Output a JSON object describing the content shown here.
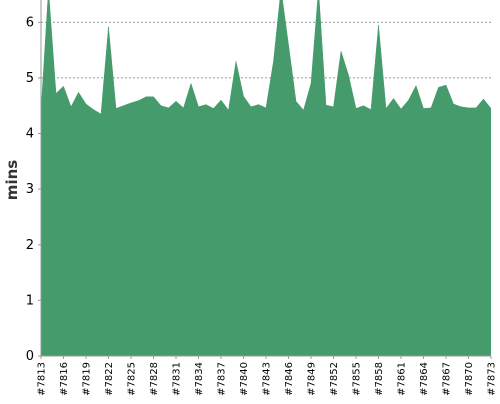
{
  "chart_data": {
    "type": "area",
    "title": "",
    "xlabel": "",
    "ylabel": "mins",
    "ylim": [
      0,
      6.4
    ],
    "yticks": [
      0,
      1,
      2,
      3,
      4,
      5,
      6
    ],
    "grid": true,
    "legend": "none",
    "colors": {
      "fill": "#459b6c",
      "grid": "#7a7a7a",
      "axis": "#9a9a9a",
      "text": "#000000"
    },
    "xticklabels": [
      "#7813",
      "#7816",
      "#7819",
      "#7822",
      "#7825",
      "#7828",
      "#7831",
      "#7834",
      "#7837",
      "#7840",
      "#7843",
      "#7846",
      "#7849",
      "#7852",
      "#7855",
      "#7858",
      "#7861",
      "#7864",
      "#7867",
      "#7870",
      "#7873"
    ],
    "x": [
      7813,
      7814,
      7815,
      7816,
      7817,
      7818,
      7819,
      7820,
      7821,
      7822,
      7823,
      7824,
      7825,
      7826,
      7827,
      7828,
      7829,
      7830,
      7831,
      7832,
      7833,
      7834,
      7835,
      7836,
      7837,
      7838,
      7839,
      7840,
      7841,
      7842,
      7843,
      7844,
      7845,
      7846,
      7847,
      7848,
      7849,
      7850,
      7851,
      7852,
      7853,
      7854,
      7855,
      7856,
      7857,
      7858,
      7859,
      7860,
      7861,
      7862,
      7863,
      7864,
      7865,
      7866,
      7867,
      7868,
      7869,
      7870,
      7871,
      7872,
      7873
    ],
    "values": [
      4.4,
      6.6,
      4.72,
      4.85,
      4.48,
      4.74,
      4.53,
      4.43,
      4.35,
      5.92,
      4.45,
      4.5,
      4.55,
      4.59,
      4.66,
      4.66,
      4.5,
      4.46,
      4.58,
      4.46,
      4.9,
      4.48,
      4.52,
      4.45,
      4.6,
      4.42,
      5.3,
      4.67,
      4.48,
      4.52,
      4.46,
      5.3,
      6.6,
      5.6,
      4.58,
      4.42,
      4.9,
      6.6,
      4.51,
      4.48,
      5.48,
      5.05,
      4.45,
      4.5,
      4.43,
      5.95,
      4.45,
      4.63,
      4.44,
      4.6,
      4.86,
      4.45,
      4.46,
      4.83,
      4.87,
      4.53,
      4.48,
      4.46,
      4.46,
      4.62,
      4.45
    ]
  }
}
